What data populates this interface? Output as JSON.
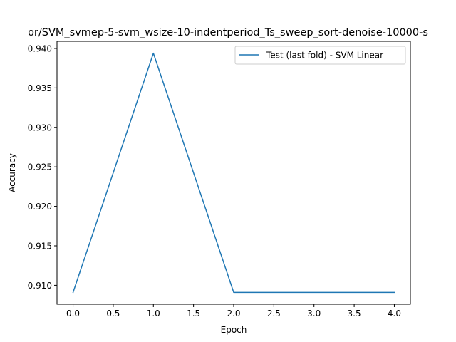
{
  "chart_data": {
    "type": "line",
    "title": "or/SVM_svmep-5-svm_wsize-10-indentperiod_Ts_sweep_sort-denoise-10000-s",
    "xlabel": "Epoch",
    "ylabel": "Accuracy",
    "xlim": [
      -0.2,
      4.2
    ],
    "ylim": [
      0.9076,
      0.9409
    ],
    "xticks": [
      0.0,
      0.5,
      1.0,
      1.5,
      2.0,
      2.5,
      3.0,
      3.5,
      4.0
    ],
    "xtick_labels": [
      "0.0",
      "0.5",
      "1.0",
      "1.5",
      "2.0",
      "2.5",
      "3.0",
      "3.5",
      "4.0"
    ],
    "yticks": [
      0.91,
      0.915,
      0.92,
      0.925,
      0.93,
      0.935,
      0.94
    ],
    "ytick_labels": [
      "0.910",
      "0.915",
      "0.920",
      "0.925",
      "0.930",
      "0.935",
      "0.940"
    ],
    "grid": false,
    "legend_position": "top-right",
    "series": [
      {
        "name": "Test (last fold) - SVM Linear",
        "color": "#1f77b4",
        "x": [
          0,
          1,
          2,
          3,
          4
        ],
        "y": [
          0.9091,
          0.9394,
          0.9091,
          0.9091,
          0.9091
        ]
      }
    ]
  }
}
